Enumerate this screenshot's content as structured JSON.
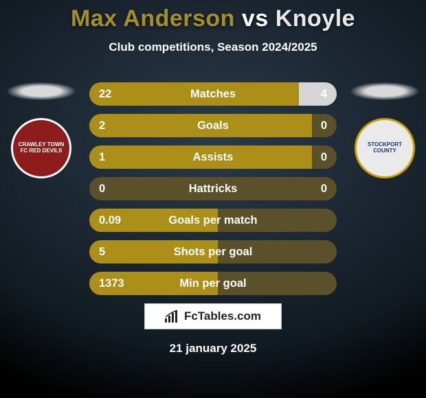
{
  "background": {
    "color_top": "#2b3a4a",
    "color_bottom": "#111a22",
    "vignette_color": "#000000"
  },
  "title": {
    "player_a": "Max Anderson",
    "vs": "vs",
    "player_b": "Knoyle",
    "color_a": "#a58f2a",
    "color_vs": "#ffffff",
    "color_b": "#e9e9e9"
  },
  "subtitle": "Club competitions, Season 2024/2025",
  "badges": {
    "left": {
      "ellipse_color": "#d9d9d9",
      "crest_bg": "#8e1c1c",
      "crest_ring": "#ffffff",
      "crest_text_color": "#ffffff",
      "crest_text": "CRAWLEY TOWN FC\nRED DEVILS"
    },
    "right": {
      "ellipse_color": "#d9d9d9",
      "crest_bg": "#eaeaea",
      "crest_ring": "#c9a400",
      "crest_text_color": "#1b3a6b",
      "crest_text": "STOCKPORT COUNTY"
    }
  },
  "bars": {
    "track_color": "#5a512a",
    "fill_left_color": "#ab8f19",
    "fill_right_color": "#d6d6d6",
    "rows": [
      {
        "label": "Matches",
        "left_text": "22",
        "right_text": "4",
        "left_val": 22,
        "right_val": 4
      },
      {
        "label": "Goals",
        "left_text": "2",
        "right_text": "0",
        "left_val": 2,
        "right_val": 0
      },
      {
        "label": "Assists",
        "left_text": "1",
        "right_text": "0",
        "left_val": 1,
        "right_val": 0
      },
      {
        "label": "Hattricks",
        "left_text": "0",
        "right_text": "0",
        "left_val": 0,
        "right_val": 0
      },
      {
        "label": "Goals per match",
        "left_text": "0.09",
        "right_text": "",
        "left_val": 0.09,
        "right_val": 0
      },
      {
        "label": "Shots per goal",
        "left_text": "5",
        "right_text": "",
        "left_val": 5,
        "right_val": 0
      },
      {
        "label": "Min per goal",
        "left_text": "1373",
        "right_text": "",
        "left_val": 1373,
        "right_val": 0
      }
    ]
  },
  "watermark": "FcTables.com",
  "date": "21 january 2025"
}
